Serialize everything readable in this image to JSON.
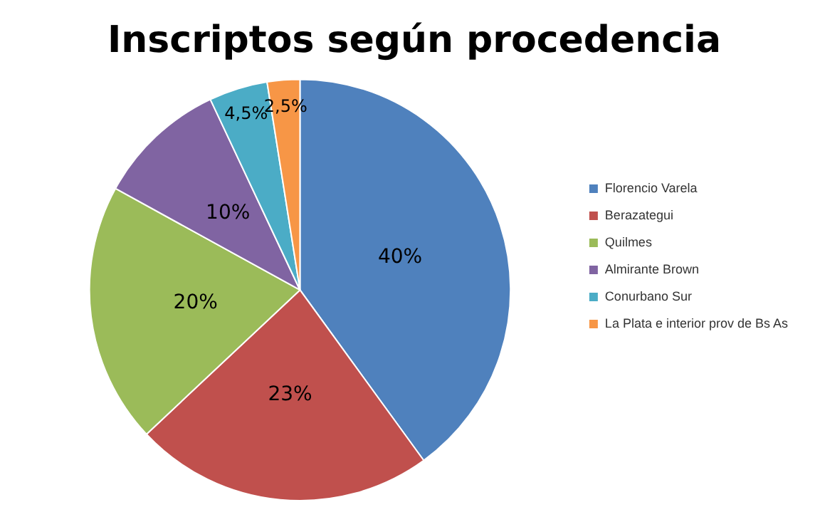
{
  "chart_data": {
    "type": "pie",
    "title": "Inscriptos según procedencia",
    "categories": [
      "Florencio Varela",
      "Berazategui",
      "Quilmes",
      "Almirante Brown",
      "Conurbano Sur",
      "La Plata e interior prov de Bs As"
    ],
    "values": [
      40,
      23,
      20,
      10,
      4.5,
      2.5
    ],
    "colors": [
      "#4f81bd",
      "#c0504d",
      "#9bbb59",
      "#8064a2",
      "#4bacc6",
      "#f79646"
    ],
    "value_labels": [
      "40%",
      "23%",
      "20%",
      "10%",
      "4,5%",
      "2,5%"
    ],
    "legend": "right"
  }
}
